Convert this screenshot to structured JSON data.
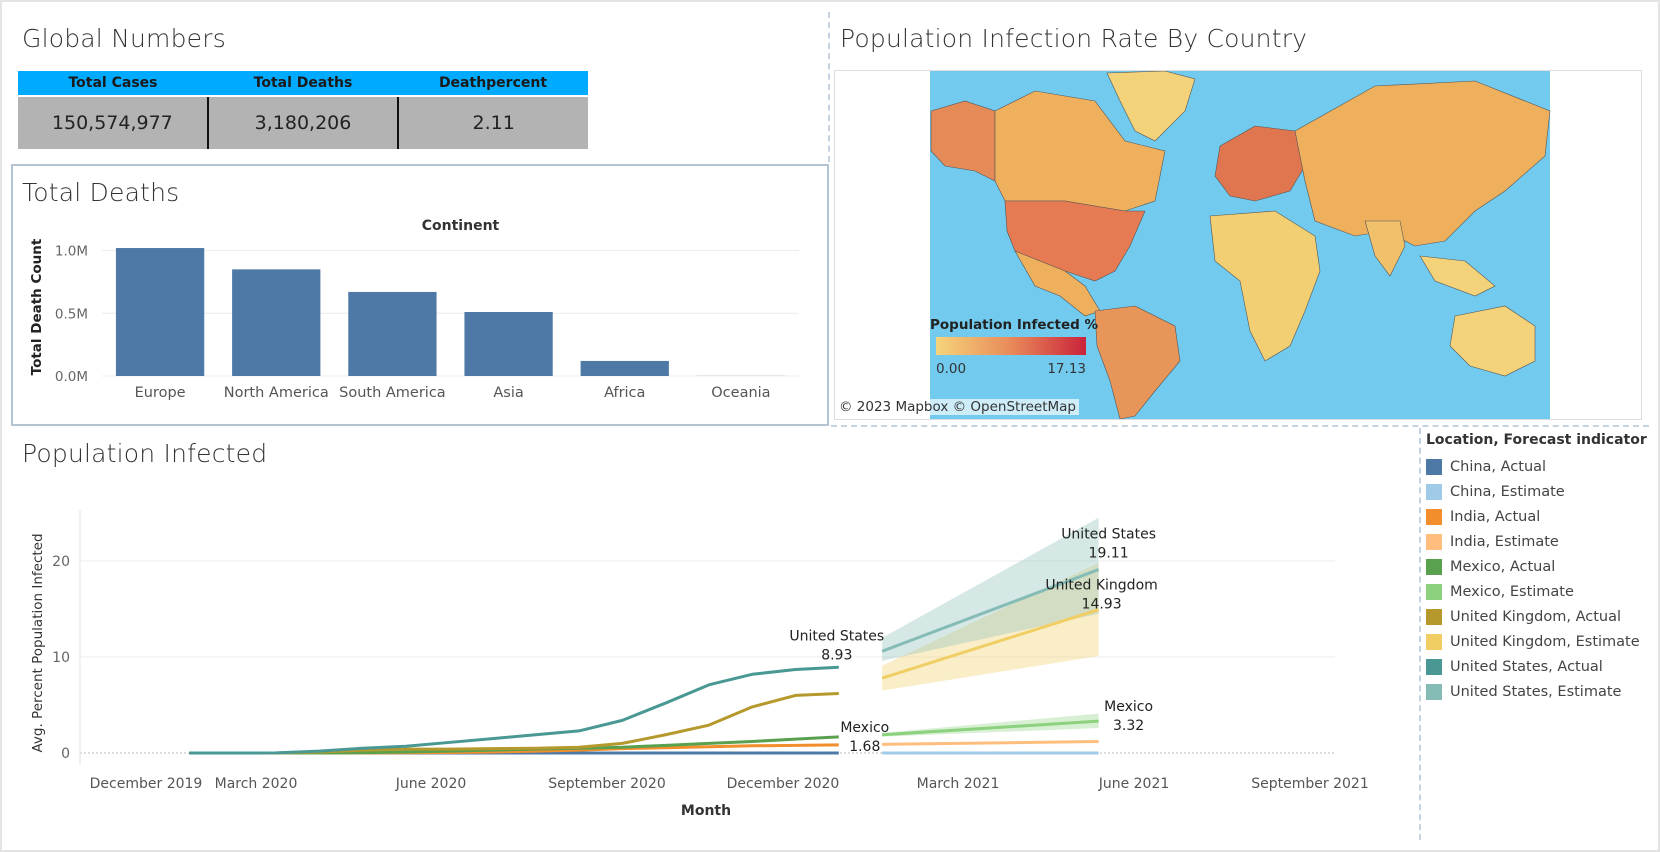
{
  "global_numbers": {
    "title": "Global Numbers",
    "headers": [
      "Total Cases",
      "Total Deaths",
      "Deathpercent"
    ],
    "values": [
      "150,574,977",
      "3,180,206",
      "2.11"
    ]
  },
  "total_deaths": {
    "title": "Total Deaths"
  },
  "map": {
    "title": "Population Infection Rate By Country",
    "legend_title": "Population Infected %",
    "legend_min": "0.00",
    "legend_max": "17.13",
    "credit": "© 2023 Mapbox © OpenStreetMap",
    "colors": {
      "ocean": "#72cbee",
      "low": "#f5d47a",
      "mid": "#eda35e",
      "high": "#c9233a"
    }
  },
  "population_infected": {
    "title": "Population Infected"
  },
  "legend": {
    "title": "Location, Forecast indicator",
    "items": [
      {
        "label": "China, Actual",
        "color": "#4e79a7"
      },
      {
        "label": "China, Estimate",
        "color": "#a0cbe8"
      },
      {
        "label": "India, Actual",
        "color": "#f28e2b"
      },
      {
        "label": "India, Estimate",
        "color": "#ffbe7d"
      },
      {
        "label": "Mexico, Actual",
        "color": "#59a14f"
      },
      {
        "label": "Mexico, Estimate",
        "color": "#8cd17d"
      },
      {
        "label": "United Kingdom, Actual",
        "color": "#b6992d"
      },
      {
        "label": "United Kingdom, Estimate",
        "color": "#f1ce63"
      },
      {
        "label": "United States, Actual",
        "color": "#499894"
      },
      {
        "label": "United States, Estimate",
        "color": "#86bcb6"
      }
    ]
  },
  "chart_data": [
    {
      "type": "bar",
      "title": "Continent",
      "xlabel": "",
      "ylabel": "Total Death Count",
      "categories": [
        "Europe",
        "North America",
        "South America",
        "Asia",
        "Africa",
        "Oceania"
      ],
      "values": [
        1020000,
        850000,
        670000,
        510000,
        120000,
        1000
      ],
      "ylim": [
        0,
        1100000
      ],
      "yticks": [
        0,
        500000,
        1000000
      ],
      "ytick_labels": [
        "0.0M",
        "0.5M",
        "1.0M"
      ],
      "color": "#4e79a7",
      "grid": true
    },
    {
      "type": "line",
      "xlabel": "Month",
      "ylabel": "Avg. Percent Population Infected",
      "ylim": [
        0,
        25
      ],
      "yticks": [
        0,
        10,
        20
      ],
      "xtick_labels": [
        "December 2019",
        "March 2020",
        "June 2020",
        "September 2020",
        "December 2020",
        "March 2021",
        "June 2021",
        "September 2021"
      ],
      "months_actual": [
        "2020-01",
        "2020-02",
        "2020-03",
        "2020-04",
        "2020-05",
        "2020-06",
        "2020-07",
        "2020-08",
        "2020-09",
        "2020-10",
        "2020-11",
        "2020-12",
        "2021-01",
        "2021-02",
        "2021-03",
        "2021-04"
      ],
      "series": [
        {
          "name": "China, Actual",
          "color": "#4e79a7",
          "values": [
            0,
            0,
            0,
            0,
            0,
            0,
            0,
            0,
            0,
            0,
            0,
            0,
            0,
            0,
            0,
            0
          ]
        },
        {
          "name": "India, Actual",
          "color": "#f28e2b",
          "values": [
            0,
            0,
            0,
            0,
            0,
            0.02,
            0.05,
            0.1,
            0.2,
            0.3,
            0.45,
            0.55,
            0.65,
            0.75,
            0.8,
            0.85
          ]
        },
        {
          "name": "Mexico, Actual",
          "color": "#59a14f",
          "values": [
            0,
            0,
            0,
            0,
            0.03,
            0.1,
            0.2,
            0.3,
            0.4,
            0.5,
            0.6,
            0.8,
            1.0,
            1.2,
            1.45,
            1.68
          ]
        },
        {
          "name": "United Kingdom, Actual",
          "color": "#b6992d",
          "values": [
            0,
            0,
            0,
            0.1,
            0.3,
            0.4,
            0.4,
            0.45,
            0.5,
            0.6,
            1.0,
            1.9,
            2.9,
            4.8,
            6.0,
            6.2
          ]
        },
        {
          "name": "United States, Actual",
          "color": "#499894",
          "values": [
            0,
            0,
            0.01,
            0.2,
            0.5,
            0.7,
            1.1,
            1.5,
            1.9,
            2.3,
            3.4,
            5.2,
            7.1,
            8.2,
            8.7,
            8.93
          ]
        }
      ],
      "forecast": {
        "months": [
          "2021-05",
          "2021-10"
        ],
        "series": [
          {
            "name": "China, Estimate",
            "color": "#a0cbe8",
            "values": [
              0,
              0
            ]
          },
          {
            "name": "India, Estimate",
            "color": "#ffbe7d",
            "values": [
              0.9,
              1.2
            ]
          },
          {
            "name": "Mexico, Estimate",
            "color": "#8cd17d",
            "values": [
              1.9,
              3.32
            ],
            "band": [
              [
                1.7,
                2.1
              ],
              [
                2.6,
                4.1
              ]
            ]
          },
          {
            "name": "United Kingdom, Estimate",
            "color": "#f1ce63",
            "values": [
              7.8,
              14.93
            ],
            "band": [
              [
                6.5,
                9.1
              ],
              [
                10.1,
                19.8
              ]
            ]
          },
          {
            "name": "United States, Estimate",
            "color": "#86bcb6",
            "values": [
              10.6,
              19.11
            ],
            "band": [
              [
                9.6,
                12.0
              ],
              [
                14.5,
                24.5
              ]
            ]
          }
        ]
      },
      "annotations": [
        {
          "label": "United States",
          "value": "8.93"
        },
        {
          "label": "Mexico",
          "value": "1.68"
        },
        {
          "label": "United States",
          "value": "19.11"
        },
        {
          "label": "United Kingdom",
          "value": "14.93"
        },
        {
          "label": "Mexico",
          "value": "3.32"
        }
      ]
    }
  ]
}
